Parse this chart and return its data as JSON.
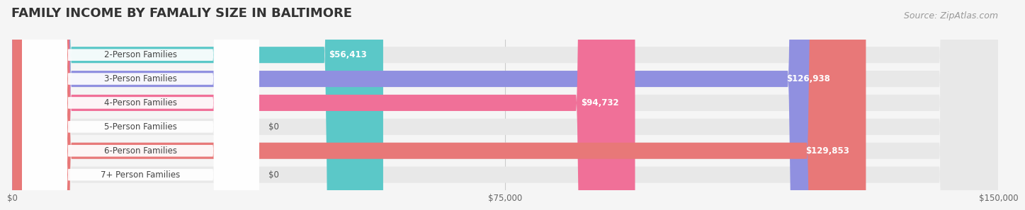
{
  "title": "FAMILY INCOME BY FAMALIY SIZE IN BALTIMORE",
  "source": "Source: ZipAtlas.com",
  "categories": [
    "2-Person Families",
    "3-Person Families",
    "4-Person Families",
    "5-Person Families",
    "6-Person Families",
    "7+ Person Families"
  ],
  "values": [
    56413,
    126938,
    94732,
    0,
    129853,
    0
  ],
  "bar_colors": [
    "#5bc8c8",
    "#9090e0",
    "#f07098",
    "#f5c897",
    "#e87878",
    "#a8c8f0"
  ],
  "xlim": [
    0,
    150000
  ],
  "xticks": [
    0,
    75000,
    150000
  ],
  "xtick_labels": [
    "$0",
    "$75,000",
    "$150,000"
  ],
  "background_color": "#f5f5f5",
  "bar_bg_color": "#e8e8e8",
  "title_fontsize": 13,
  "label_fontsize": 8.5,
  "annotation_fontsize": 8.5,
  "source_fontsize": 9
}
